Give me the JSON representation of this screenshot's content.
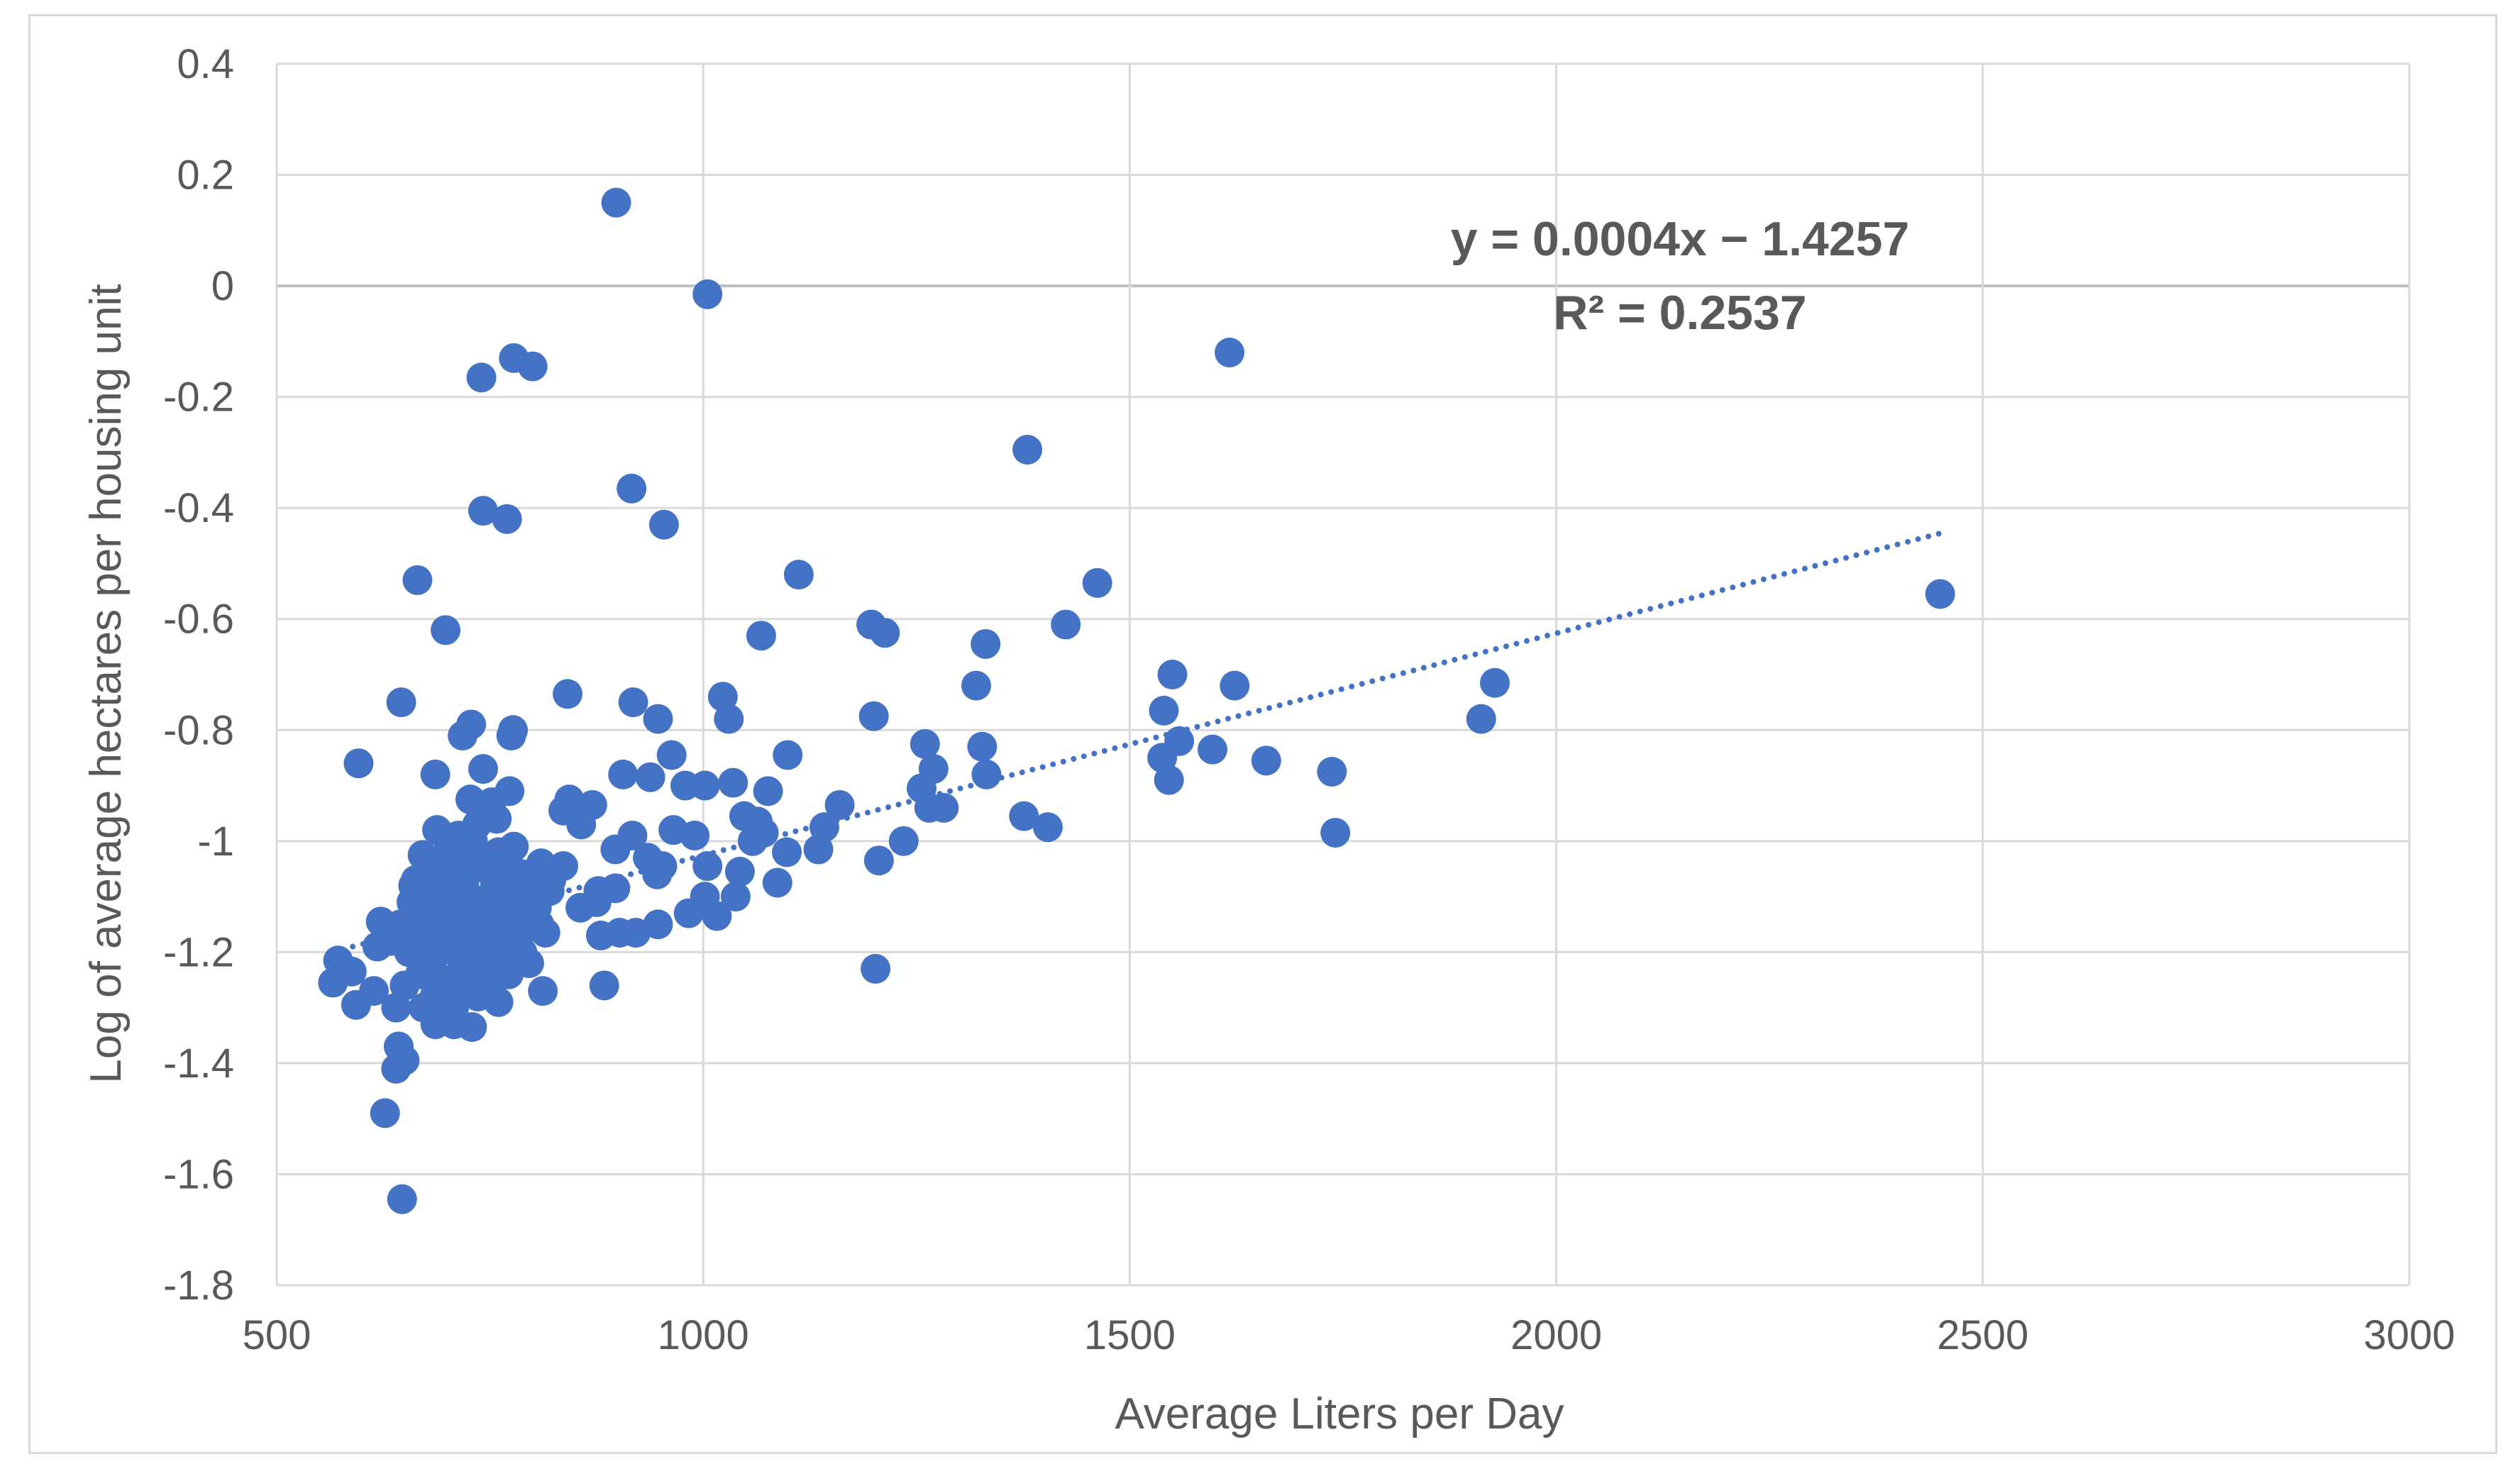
{
  "chart_data": {
    "type": "scatter",
    "title": "",
    "xlabel": "Average Liters per Day",
    "ylabel": "Log of average hectares per housing unit",
    "xlim": [
      500,
      3000
    ],
    "ylim": [
      -1.8,
      0.4
    ],
    "x_ticks": [
      "500",
      "1000",
      "1500",
      "2000",
      "2500",
      "3000"
    ],
    "y_ticks": [
      "0.4",
      "0.2",
      "0",
      "-0.2",
      "-0.4",
      "-0.6",
      "-0.8",
      "-1",
      "-1.2",
      "-1.4",
      "-1.6",
      "-1.8"
    ],
    "grid": true,
    "marker_color": "#4472c4",
    "trendline": {
      "type": "linear",
      "style": "dotted",
      "slope": 0.0004,
      "intercept": -1.4257,
      "x_range": [
        565,
        2450
      ],
      "equation": "y = 0.0004x − 1.4257",
      "r_squared": "R² = 0.2537"
    },
    "points": [
      [
        898,
        0.15
      ],
      [
        1005,
        -0.015
      ],
      [
        1617,
        -0.12
      ],
      [
        778,
        -0.13
      ],
      [
        800,
        -0.145
      ],
      [
        740,
        -0.165
      ],
      [
        1380,
        -0.295
      ],
      [
        916,
        -0.365
      ],
      [
        742,
        -0.405
      ],
      [
        770,
        -0.42
      ],
      [
        954,
        -0.43
      ],
      [
        1112,
        -0.52
      ],
      [
        1462,
        -0.535
      ],
      [
        665,
        -0.53
      ],
      [
        2450,
        -0.555
      ],
      [
        698,
        -0.62
      ],
      [
        1197,
        -0.61
      ],
      [
        1213,
        -0.625
      ],
      [
        1068,
        -0.63
      ],
      [
        1425,
        -0.61
      ],
      [
        1331,
        -0.645
      ],
      [
        1550,
        -0.7
      ],
      [
        1928,
        -0.715
      ],
      [
        1623,
        -0.72
      ],
      [
        1320,
        -0.72
      ],
      [
        841,
        -0.735
      ],
      [
        646,
        -0.75
      ],
      [
        918,
        -0.75
      ],
      [
        1023,
        -0.74
      ],
      [
        1540,
        -0.765
      ],
      [
        1200,
        -0.775
      ],
      [
        1030,
        -0.78
      ],
      [
        947,
        -0.78
      ],
      [
        1912,
        -0.78
      ],
      [
        728,
        -0.79
      ],
      [
        777,
        -0.8
      ],
      [
        775,
        -0.81
      ],
      [
        718,
        -0.81
      ],
      [
        1558,
        -0.82
      ],
      [
        1260,
        -0.825
      ],
      [
        1327,
        -0.83
      ],
      [
        1597,
        -0.835
      ],
      [
        1099,
        -0.845
      ],
      [
        963,
        -0.845
      ],
      [
        1538,
        -0.85
      ],
      [
        1660,
        -0.855
      ],
      [
        596,
        -0.86
      ],
      [
        742,
        -0.87
      ],
      [
        1270,
        -0.87
      ],
      [
        1737,
        -0.875
      ],
      [
        1332,
        -0.88
      ],
      [
        686,
        -0.88
      ],
      [
        906,
        -0.88
      ],
      [
        938,
        -0.885
      ],
      [
        1546,
        -0.89
      ],
      [
        1035,
        -0.895
      ],
      [
        979,
        -0.9
      ],
      [
        1002,
        -0.9
      ],
      [
        1256,
        -0.905
      ],
      [
        773,
        -0.91
      ],
      [
        1076,
        -0.91
      ],
      [
        727,
        -0.925
      ],
      [
        843,
        -0.925
      ],
      [
        870,
        -0.935
      ],
      [
        752,
        -0.93
      ],
      [
        1160,
        -0.935
      ],
      [
        1265,
        -0.94
      ],
      [
        1282,
        -0.94
      ],
      [
        836,
        -0.945
      ],
      [
        1376,
        -0.955
      ],
      [
        1048,
        -0.955
      ],
      [
        1064,
        -0.965
      ],
      [
        857,
        -0.97
      ],
      [
        1404,
        -0.975
      ],
      [
        1142,
        -0.975
      ],
      [
        688,
        -0.98
      ],
      [
        1741,
        -0.985
      ],
      [
        1071,
        -0.985
      ],
      [
        917,
        -0.99
      ],
      [
        965,
        -0.98
      ],
      [
        990,
        -0.99
      ],
      [
        1058,
        -1.0
      ],
      [
        1235,
        -1.0
      ],
      [
        778,
        -1.01
      ],
      [
        897,
        -1.015
      ],
      [
        1135,
        -1.015
      ],
      [
        1098,
        -1.02
      ],
      [
        671,
        -1.025
      ],
      [
        935,
        -1.03
      ],
      [
        1206,
        -1.035
      ],
      [
        952,
        -1.045
      ],
      [
        1005,
        -1.045
      ],
      [
        836,
        -1.045
      ],
      [
        1043,
        -1.055
      ],
      [
        795,
        -1.06
      ],
      [
        946,
        -1.06
      ],
      [
        822,
        -1.07
      ],
      [
        663,
        -1.07
      ],
      [
        1087,
        -1.075
      ],
      [
        897,
        -1.085
      ],
      [
        877,
        -1.09
      ],
      [
        1002,
        -1.1
      ],
      [
        1038,
        -1.1
      ],
      [
        875,
        -1.11
      ],
      [
        856,
        -1.12
      ],
      [
        983,
        -1.13
      ],
      [
        1016,
        -1.135
      ],
      [
        808,
        -1.15
      ],
      [
        622,
        -1.145
      ],
      [
        947,
        -1.15
      ],
      [
        815,
        -1.165
      ],
      [
        921,
        -1.165
      ],
      [
        902,
        -1.165
      ],
      [
        880,
        -1.17
      ],
      [
        633,
        -1.18
      ],
      [
        618,
        -1.19
      ],
      [
        670,
        -1.195
      ],
      [
        758,
        -1.2
      ],
      [
        796,
        -1.22
      ],
      [
        572,
        -1.215
      ],
      [
        1202,
        -1.23
      ],
      [
        588,
        -1.235
      ],
      [
        772,
        -1.24
      ],
      [
        566,
        -1.255
      ],
      [
        884,
        -1.26
      ],
      [
        614,
        -1.27
      ],
      [
        812,
        -1.27
      ],
      [
        760,
        -1.29
      ],
      [
        593,
        -1.295
      ],
      [
        640,
        -1.3
      ],
      [
        708,
        -1.3
      ],
      [
        700,
        -1.32
      ],
      [
        708,
        -1.33
      ],
      [
        729,
        -1.335
      ],
      [
        643,
        -1.37
      ],
      [
        650,
        -1.395
      ],
      [
        640,
        -1.41
      ],
      [
        627,
        -1.49
      ],
      [
        647,
        -1.645
      ],
      [
        660,
        -1.08
      ],
      [
        675,
        -1.1
      ],
      [
        690,
        -1.05
      ],
      [
        705,
        -1.12
      ],
      [
        720,
        -1.08
      ],
      [
        735,
        -1.14
      ],
      [
        750,
        -1.1
      ],
      [
        765,
        -1.06
      ],
      [
        680,
        -1.15
      ],
      [
        695,
        -1.18
      ],
      [
        710,
        -1.2
      ],
      [
        725,
        -1.16
      ],
      [
        740,
        -1.12
      ],
      [
        755,
        -1.18
      ],
      [
        770,
        -1.14
      ],
      [
        785,
        -1.1
      ],
      [
        700,
        -1.02
      ],
      [
        715,
        -1.04
      ],
      [
        730,
        -1.0
      ],
      [
        745,
        -1.05
      ],
      [
        760,
        -1.02
      ],
      [
        665,
        -1.13
      ],
      [
        682,
        -1.22
      ],
      [
        698,
        -1.25
      ],
      [
        712,
        -1.27
      ],
      [
        728,
        -1.23
      ],
      [
        744,
        -1.2
      ],
      [
        655,
        -1.2
      ],
      [
        668,
        -1.24
      ],
      [
        685,
        -1.28
      ],
      [
        703,
        -1.16
      ],
      [
        718,
        -1.22
      ],
      [
        732,
        -1.19
      ],
      [
        748,
        -1.16
      ],
      [
        762,
        -1.12
      ],
      [
        790,
        -1.16
      ],
      [
        805,
        -1.12
      ],
      [
        820,
        -1.09
      ],
      [
        790,
        -1.06
      ],
      [
        810,
        -1.04
      ],
      [
        650,
        -1.26
      ],
      [
        672,
        -1.3
      ],
      [
        690,
        -1.31
      ],
      [
        736,
        -1.28
      ],
      [
        752,
        -1.25
      ],
      [
        658,
        -1.11
      ],
      [
        676,
        -1.06
      ],
      [
        692,
        -1.09
      ],
      [
        708,
        -1.07
      ],
      [
        724,
        -1.11
      ],
      [
        740,
        -1.03
      ],
      [
        756,
        -1.08
      ],
      [
        772,
        -1.04
      ],
      [
        788,
        -1.2
      ],
      [
        645,
        -1.15
      ],
      [
        662,
        -1.18
      ],
      [
        678,
        -1.17
      ],
      [
        694,
        -1.14
      ],
      [
        714,
        -1.13
      ],
      [
        730,
        -1.17
      ],
      [
        746,
        -1.14
      ],
      [
        764,
        -1.17
      ],
      [
        780,
        -1.13
      ],
      [
        798,
        -1.09
      ],
      [
        713,
        -0.99
      ],
      [
        735,
        -0.97
      ],
      [
        758,
        -0.96
      ],
      [
        702,
        -1.28
      ],
      [
        686,
        -1.33
      ]
    ]
  }
}
